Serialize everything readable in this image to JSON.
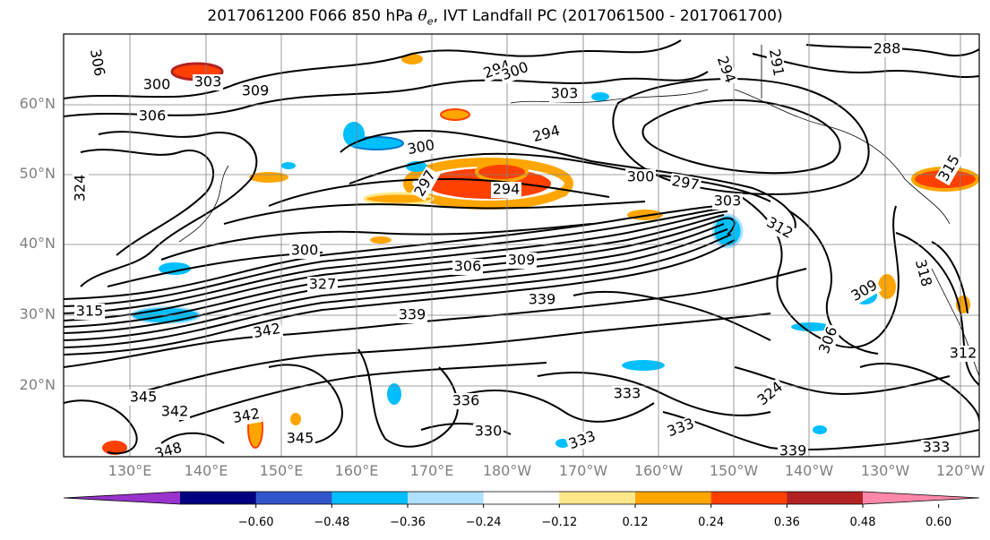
{
  "title": {
    "prefix": "2017061200 F066 850 hPa ",
    "theta": "θ",
    "sub": "e",
    "suffix": ", IVT Landfall PC (2017061500 - 2017061700)"
  },
  "map": {
    "lat_labels": [
      "60°N",
      "50°N",
      "40°N",
      "30°N",
      "20°N"
    ],
    "lon_labels": [
      "130°E",
      "140°E",
      "150°E",
      "160°E",
      "170°E",
      "180°W",
      "170°W",
      "160°W",
      "150°W",
      "140°W",
      "130°W",
      "120°W"
    ],
    "contour_labels": [
      "306",
      "300",
      "303",
      "309",
      "306",
      "294",
      "288",
      "291",
      "294",
      "300",
      "303",
      "294",
      "300",
      "297",
      "294",
      "300",
      "297",
      "303",
      "312",
      "324",
      "315",
      "300",
      "306",
      "309",
      "327",
      "339",
      "342",
      "339",
      "345",
      "342",
      "342",
      "345",
      "348",
      "333",
      "336",
      "330",
      "333",
      "339",
      "333",
      "309",
      "306",
      "318",
      "324",
      "333",
      "312",
      "315"
    ]
  },
  "colorbar": {
    "ticks": [
      "−0.60",
      "−0.48",
      "−0.36",
      "−0.24",
      "−0.12",
      "0.12",
      "0.24",
      "0.36",
      "0.48",
      "0.60"
    ],
    "colors": [
      "#9933cc",
      "#000080",
      "#3355cc",
      "#00bfff",
      "#b0e0ff",
      "#ffffff",
      "#ffe88a",
      "#ffa500",
      "#ff4000",
      "#b22222",
      "#ff88aa"
    ]
  }
}
